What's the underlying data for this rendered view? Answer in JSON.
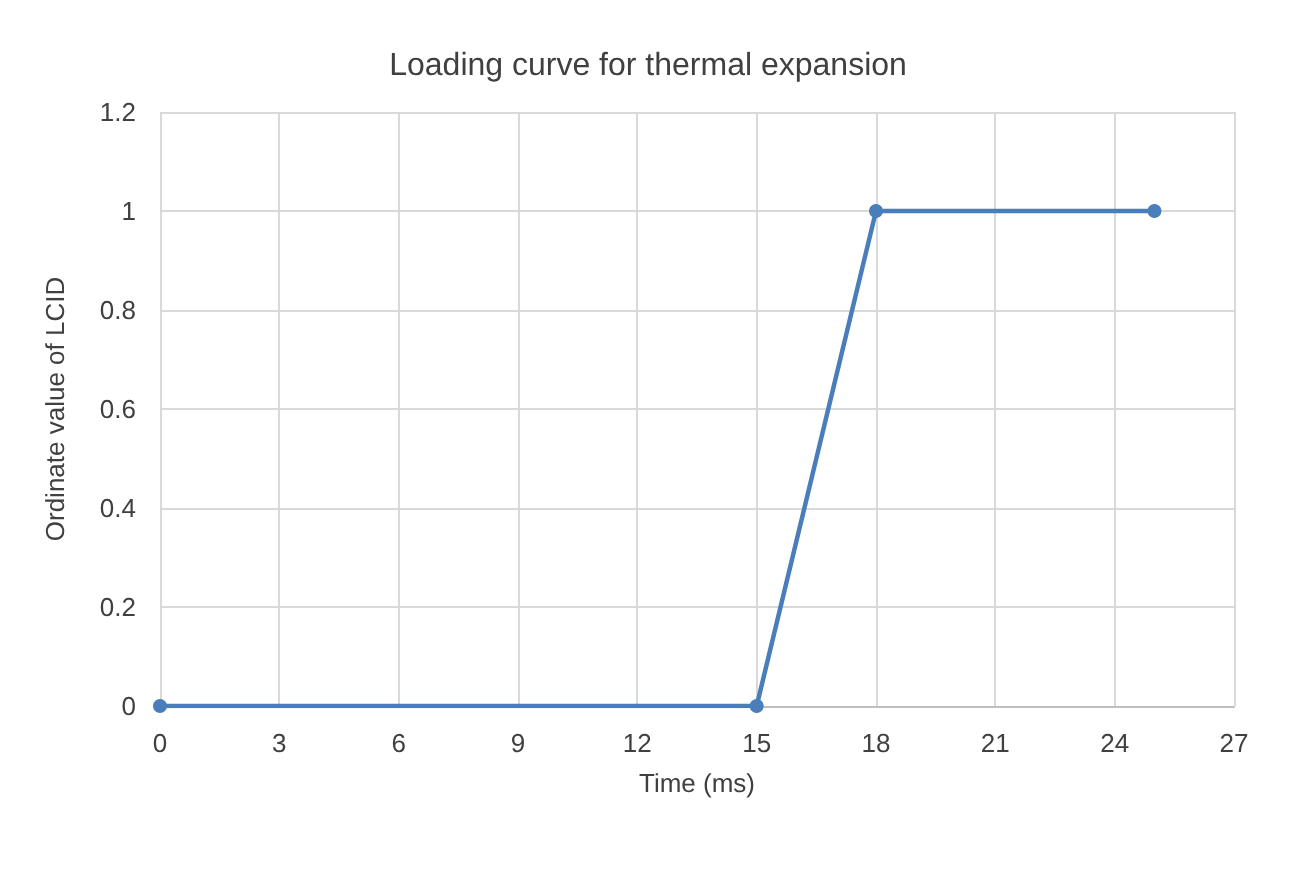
{
  "chart_data": {
    "type": "line",
    "title": "Loading curve for thermal expansion",
    "xlabel": "Time (ms)",
    "ylabel": "Ordinate value of LCID",
    "x": [
      0,
      15,
      18,
      25
    ],
    "series": [
      {
        "color": "#4a7ebb",
        "values": [
          0,
          0,
          1,
          1
        ]
      }
    ],
    "xlim": [
      0,
      27
    ],
    "xticks": [
      0,
      3,
      6,
      9,
      12,
      15,
      18,
      21,
      24,
      27
    ],
    "ylim": [
      0,
      1.2
    ],
    "yticks": [
      0,
      0.2,
      0.4,
      0.6,
      0.8,
      1,
      1.2
    ],
    "grid": true,
    "marker": "circle",
    "line_style": "solid"
  }
}
